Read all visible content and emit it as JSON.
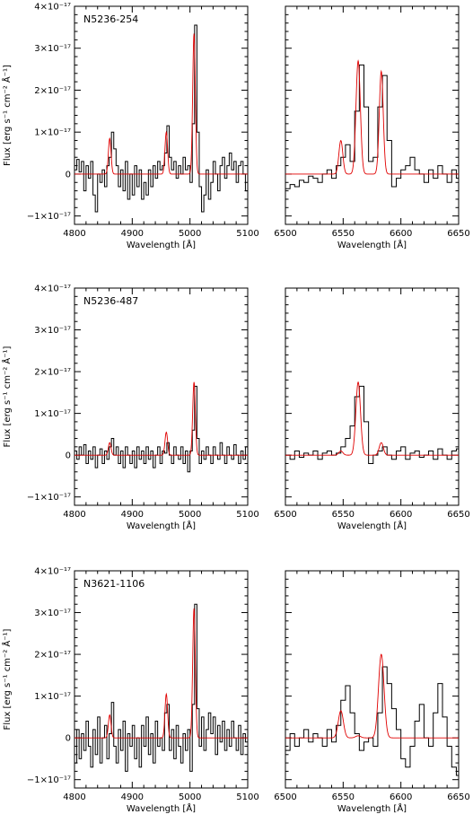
{
  "chart_data": [
    {
      "type": "line",
      "label": "N5236-254",
      "xlabel": "Wavelength [Å]",
      "ylabel": "Flux [erg s⁻¹ cm⁻² Å⁻¹]",
      "xlim": [
        4800,
        5100
      ],
      "ylim": [
        -1.2e-17,
        4e-17
      ],
      "xticks": [
        4800,
        4900,
        5000,
        5100
      ],
      "yticks": [
        {
          "v": -1e-17,
          "label": "−1×10⁻¹⁷"
        },
        {
          "v": 0,
          "label": "0"
        },
        {
          "v": 1e-17,
          "label": "1×10⁻¹⁷"
        },
        {
          "v": 2e-17,
          "label": "2×10⁻¹⁷"
        },
        {
          "v": 3e-17,
          "label": "3×10⁻¹⁷"
        },
        {
          "v": 4e-17,
          "label": "4×10⁻¹⁷"
        }
      ],
      "series": [
        {
          "role": "observed",
          "color": "#000000",
          "x": [
            4800,
            4804,
            4808,
            4812,
            4816,
            4820,
            4824,
            4828,
            4832,
            4836,
            4840,
            4844,
            4848,
            4852,
            4856,
            4860,
            4864,
            4868,
            4872,
            4876,
            4880,
            4884,
            4888,
            4892,
            4896,
            4900,
            4904,
            4908,
            4912,
            4916,
            4920,
            4924,
            4928,
            4932,
            4936,
            4940,
            4944,
            4948,
            4952,
            4956,
            4960,
            4964,
            4968,
            4972,
            4976,
            4980,
            4984,
            4988,
            4992,
            4996,
            5000,
            5004,
            5008,
            5012,
            5016,
            5020,
            5024,
            5028,
            5032,
            5036,
            5040,
            5044,
            5048,
            5052,
            5056,
            5060,
            5064,
            5068,
            5072,
            5076,
            5080,
            5084,
            5088,
            5092,
            5096,
            5100
          ],
          "y": [
            1e-18,
            3.5e-18,
            5e-19,
            3e-18,
            -4e-18,
            2e-18,
            -1e-18,
            3e-18,
            -5e-18,
            -9e-18,
            0.0,
            -2e-18,
            1e-18,
            -3e-18,
            2e-18,
            4e-18,
            1e-17,
            6e-18,
            2e-18,
            -3e-18,
            1e-18,
            -4e-18,
            3e-18,
            -6e-18,
            0.0,
            -5e-18,
            2e-18,
            -3e-18,
            1e-18,
            -6e-18,
            -2e-18,
            -5e-18,
            1e-18,
            -3e-18,
            2e-18,
            -1e-18,
            3e-18,
            1e-18,
            2e-18,
            5e-18,
            1.15e-17,
            4e-18,
            1e-18,
            3e-18,
            -1e-18,
            2e-18,
            0.0,
            4e-18,
            1e-18,
            2e-18,
            -2e-18,
            1.2e-17,
            3.55e-17,
            1e-17,
            -3e-18,
            -9e-18,
            -5e-18,
            1e-18,
            -6e-18,
            -2e-18,
            3e-18,
            0.0,
            -4e-18,
            2e-18,
            4e-18,
            -1e-18,
            2e-18,
            5e-18,
            1e-18,
            3e-18,
            -2e-18,
            2e-18,
            3e-18,
            0.0,
            -4e-18,
            1e-18
          ]
        },
        {
          "role": "model",
          "color": "#e00000",
          "lines": [
            {
              "center": 4861,
              "amp": 8.5e-18,
              "sigma": 2.3
            },
            {
              "center": 4959,
              "amp": 1e-17,
              "sigma": 2.3
            },
            {
              "center": 5007,
              "amp": 3.35e-17,
              "sigma": 2.3
            }
          ]
        }
      ]
    },
    {
      "type": "line",
      "xlabel": "Wavelength [Å]",
      "xlim": [
        6500,
        6650
      ],
      "ylim": [
        -1.2e-17,
        4e-17
      ],
      "xticks": [
        6500,
        6550,
        6600,
        6650
      ],
      "series": [
        {
          "role": "observed",
          "color": "#000000",
          "x": [
            6500,
            6504,
            6508,
            6512,
            6516,
            6520,
            6524,
            6528,
            6532,
            6536,
            6540,
            6544,
            6548,
            6552,
            6556,
            6560,
            6564,
            6568,
            6572,
            6576,
            6580,
            6584,
            6588,
            6592,
            6596,
            6600,
            6604,
            6608,
            6612,
            6616,
            6620,
            6624,
            6628,
            6632,
            6636,
            6640,
            6644,
            6648,
            6650
          ],
          "y": [
            -3.5e-18,
            -2.5e-18,
            -3e-18,
            -1.5e-18,
            -2e-18,
            -5e-19,
            -1e-18,
            -2e-18,
            0.0,
            1e-18,
            -1e-18,
            2e-18,
            4e-18,
            7e-18,
            3e-18,
            1.5e-17,
            2.6e-17,
            1.6e-17,
            3e-18,
            4e-18,
            1.6e-17,
            2.35e-17,
            8e-18,
            -3e-18,
            -1e-18,
            1e-18,
            2e-18,
            4e-18,
            1e-18,
            0.0,
            -2e-18,
            1e-18,
            -1e-18,
            2e-18,
            0.0,
            -2e-18,
            1e-18,
            -1e-18,
            0.0
          ]
        },
        {
          "role": "model",
          "color": "#e00000",
          "lines": [
            {
              "center": 6548,
              "amp": 8e-18,
              "sigma": 1.7
            },
            {
              "center": 6563,
              "amp": 2.7e-17,
              "sigma": 1.9
            },
            {
              "center": 6583,
              "amp": 2.45e-17,
              "sigma": 1.7
            }
          ]
        }
      ]
    },
    {
      "type": "line",
      "label": "N5236-487",
      "xlabel": "Wavelength [Å]",
      "ylabel": "Flux [erg s⁻¹ cm⁻² Å⁻¹]",
      "xlim": [
        4800,
        5100
      ],
      "ylim": [
        -1.2e-17,
        4e-17
      ],
      "xticks": [
        4800,
        4900,
        5000,
        5100
      ],
      "yticks": [
        {
          "v": -1e-17,
          "label": "−1×10⁻¹⁷"
        },
        {
          "v": 0,
          "label": "0"
        },
        {
          "v": 1e-17,
          "label": "1×10⁻¹⁷"
        },
        {
          "v": 2e-17,
          "label": "2×10⁻¹⁷"
        },
        {
          "v": 3e-17,
          "label": "3×10⁻¹⁷"
        },
        {
          "v": 4e-17,
          "label": "4×10⁻¹⁷"
        }
      ],
      "series": [
        {
          "role": "observed",
          "color": "#000000",
          "x": [
            4800,
            4804,
            4808,
            4812,
            4816,
            4820,
            4824,
            4828,
            4832,
            4836,
            4840,
            4844,
            4848,
            4852,
            4856,
            4860,
            4864,
            4868,
            4872,
            4876,
            4880,
            4884,
            4888,
            4892,
            4896,
            4900,
            4904,
            4908,
            4912,
            4916,
            4920,
            4924,
            4928,
            4932,
            4936,
            4940,
            4944,
            4948,
            4952,
            4956,
            4960,
            4964,
            4968,
            4972,
            4976,
            4980,
            4984,
            4988,
            4992,
            4996,
            5000,
            5004,
            5008,
            5012,
            5016,
            5020,
            5024,
            5028,
            5032,
            5036,
            5040,
            5044,
            5048,
            5052,
            5056,
            5060,
            5064,
            5068,
            5072,
            5076,
            5080,
            5084,
            5088,
            5092,
            5096,
            5100
          ],
          "y": [
            1e-18,
            -1e-18,
            2e-18,
            0.0,
            2.5e-18,
            -2e-18,
            1e-18,
            -1e-18,
            2e-18,
            -3e-18,
            0.0,
            1.5e-18,
            -2e-18,
            1e-18,
            -1e-18,
            2e-18,
            4e-18,
            0.0,
            2e-18,
            -2e-18,
            1e-18,
            -3e-18,
            2e-18,
            0.0,
            -2e-18,
            1e-18,
            -3e-18,
            2e-18,
            -1e-18,
            1e-18,
            -2e-18,
            2e-18,
            -1e-18,
            1e-18,
            -3e-18,
            0.0,
            2e-18,
            -2e-18,
            1e-18,
            5e-19,
            3e-18,
            0.0,
            -2e-18,
            2e-18,
            0.0,
            -1e-18,
            2e-18,
            -2e-18,
            1e-18,
            -4e-18,
            1e-18,
            6e-18,
            1.65e-17,
            4e-18,
            -2e-18,
            1e-18,
            -1e-18,
            2e-18,
            0.0,
            -2e-18,
            2e-18,
            0.0,
            -1e-18,
            3e-18,
            0.0,
            -2e-18,
            2e-18,
            0.0,
            -1e-18,
            2.5e-18,
            0.0,
            -2e-18,
            1e-18,
            -1e-18,
            2e-18,
            0.0
          ]
        },
        {
          "role": "model",
          "color": "#e00000",
          "lines": [
            {
              "center": 4861,
              "amp": 3e-18,
              "sigma": 2.3
            },
            {
              "center": 4959,
              "amp": 5.5e-18,
              "sigma": 2.3
            },
            {
              "center": 5007,
              "amp": 1.75e-17,
              "sigma": 2.3
            }
          ]
        }
      ]
    },
    {
      "type": "line",
      "xlabel": "Wavelength [Å]",
      "xlim": [
        6500,
        6650
      ],
      "ylim": [
        -1.2e-17,
        4e-17
      ],
      "xticks": [
        6500,
        6550,
        6600,
        6650
      ],
      "series": [
        {
          "role": "observed",
          "color": "#000000",
          "x": [
            6500,
            6504,
            6508,
            6512,
            6516,
            6520,
            6524,
            6528,
            6532,
            6536,
            6540,
            6544,
            6548,
            6552,
            6556,
            6560,
            6564,
            6568,
            6572,
            6576,
            6580,
            6584,
            6588,
            6592,
            6596,
            6600,
            6604,
            6608,
            6612,
            6616,
            6620,
            6624,
            6628,
            6632,
            6636,
            6640,
            6644,
            6648,
            6650
          ],
          "y": [
            0.0,
            -1e-18,
            1e-18,
            -5e-19,
            5e-19,
            0.0,
            1e-18,
            -1e-18,
            5e-19,
            1e-18,
            0.0,
            5e-19,
            2e-18,
            4e-18,
            7e-18,
            1.4e-17,
            1.65e-17,
            8e-18,
            -2e-18,
            0.0,
            1e-18,
            2e-18,
            0.0,
            -1e-18,
            1e-18,
            2e-18,
            -1e-18,
            5e-19,
            1e-18,
            -5e-19,
            0.0,
            1e-18,
            -1e-18,
            1.5e-18,
            0.0,
            -1e-18,
            1e-18,
            1.5e-18,
            0.0
          ]
        },
        {
          "role": "model",
          "color": "#e00000",
          "lines": [
            {
              "center": 6548,
              "amp": 1e-18,
              "sigma": 1.8
            },
            {
              "center": 6563,
              "amp": 1.75e-17,
              "sigma": 2.0
            },
            {
              "center": 6583,
              "amp": 3e-18,
              "sigma": 1.8
            }
          ]
        }
      ]
    },
    {
      "type": "line",
      "label": "N3621-1106",
      "xlabel": "Wavelength [Å]",
      "ylabel": "Flux [erg s⁻¹ cm⁻² Å⁻¹]",
      "xlim": [
        4800,
        5100
      ],
      "ylim": [
        -1.2e-17,
        4e-17
      ],
      "xticks": [
        4800,
        4900,
        5000,
        5100
      ],
      "yticks": [
        {
          "v": -1e-17,
          "label": "−1×10⁻¹⁷"
        },
        {
          "v": 0,
          "label": "0"
        },
        {
          "v": 1e-17,
          "label": "1×10⁻¹⁷"
        },
        {
          "v": 2e-17,
          "label": "2×10⁻¹⁷"
        },
        {
          "v": 3e-17,
          "label": "3×10⁻¹⁷"
        },
        {
          "v": 4e-17,
          "label": "4×10⁻¹⁷"
        }
      ],
      "series": [
        {
          "role": "observed",
          "color": "#000000",
          "x": [
            4800,
            4804,
            4808,
            4812,
            4816,
            4820,
            4824,
            4828,
            4832,
            4836,
            4840,
            4844,
            4848,
            4852,
            4856,
            4860,
            4864,
            4868,
            4872,
            4876,
            4880,
            4884,
            4888,
            4892,
            4896,
            4900,
            4904,
            4908,
            4912,
            4916,
            4920,
            4924,
            4928,
            4932,
            4936,
            4940,
            4944,
            4948,
            4952,
            4956,
            4960,
            4964,
            4968,
            4972,
            4976,
            4980,
            4984,
            4988,
            4992,
            4996,
            5000,
            5004,
            5008,
            5012,
            5016,
            5020,
            5024,
            5028,
            5032,
            5036,
            5040,
            5044,
            5048,
            5052,
            5056,
            5060,
            5064,
            5068,
            5072,
            5076,
            5080,
            5084,
            5088,
            5092,
            5096,
            5100
          ],
          "y": [
            -6e-18,
            2e-18,
            -5e-18,
            1e-18,
            -3e-18,
            4e-18,
            -2e-18,
            -7e-18,
            2e-18,
            -4e-18,
            5e-18,
            -6e-18,
            0.0,
            3e-18,
            -5e-18,
            1e-18,
            8.5e-18,
            -2e-18,
            -6e-18,
            2e-18,
            -3e-18,
            4e-18,
            -8e-18,
            1e-18,
            -2e-18,
            3e-18,
            -5e-18,
            0.0,
            -7e-18,
            3e-18,
            -2e-18,
            5e-18,
            -4e-18,
            1e-18,
            -6e-18,
            4e-18,
            -2e-18,
            0.0,
            -3e-18,
            6e-18,
            8e-18,
            -3e-18,
            2e-18,
            -5e-18,
            3e-18,
            -2e-18,
            -6e-18,
            1e-18,
            -3e-18,
            2e-18,
            -8e-18,
            8e-18,
            3.2e-17,
            7e-18,
            -2e-18,
            5e-18,
            -3e-18,
            2e-18,
            6e-18,
            1e-18,
            5e-18,
            -4e-18,
            3e-18,
            -1e-18,
            4e-18,
            -3e-18,
            2e-18,
            -2e-18,
            4e-18,
            0.0,
            -3e-18,
            3e-18,
            -4e-18,
            1e-18,
            -1e-18,
            2e-18
          ]
        },
        {
          "role": "model",
          "color": "#e00000",
          "lines": [
            {
              "center": 4861,
              "amp": 5.5e-18,
              "sigma": 2.3
            },
            {
              "center": 4959,
              "amp": 1.05e-17,
              "sigma": 2.3
            },
            {
              "center": 5007,
              "amp": 3.1e-17,
              "sigma": 2.3
            }
          ]
        }
      ]
    },
    {
      "type": "line",
      "xlabel": "Wavelength [Å]",
      "xlim": [
        6500,
        6650
      ],
      "ylim": [
        -1.2e-17,
        4e-17
      ],
      "xticks": [
        6500,
        6550,
        6600,
        6650
      ],
      "series": [
        {
          "role": "observed",
          "color": "#000000",
          "x": [
            6500,
            6504,
            6508,
            6512,
            6516,
            6520,
            6524,
            6528,
            6532,
            6536,
            6540,
            6544,
            6548,
            6552,
            6556,
            6560,
            6564,
            6568,
            6572,
            6576,
            6580,
            6584,
            6588,
            6592,
            6596,
            6600,
            6604,
            6608,
            6612,
            6616,
            6620,
            6624,
            6628,
            6632,
            6636,
            6640,
            6644,
            6648,
            6650
          ],
          "y": [
            -3e-18,
            1e-18,
            -2e-18,
            0.0,
            2e-18,
            -1e-18,
            1e-18,
            0.0,
            -2e-18,
            2e-18,
            -1e-18,
            3e-18,
            9e-18,
            1.25e-17,
            6e-18,
            1e-18,
            -3e-18,
            -1e-18,
            0.0,
            -2e-18,
            6e-18,
            1.7e-17,
            1.3e-17,
            7e-18,
            2e-18,
            -5e-18,
            -7e-18,
            -2e-18,
            4e-18,
            8e-18,
            0.0,
            -2e-18,
            6e-18,
            1.3e-17,
            5e-18,
            -2e-18,
            -7e-18,
            -9e-18,
            -5e-18
          ]
        },
        {
          "role": "model",
          "color": "#e00000",
          "lines": [
            {
              "center": 6548,
              "amp": 6.5e-18,
              "sigma": 2.2
            },
            {
              "center": 6563,
              "amp": 5e-19,
              "sigma": 2.2
            },
            {
              "center": 6583,
              "amp": 2e-17,
              "sigma": 2.4
            }
          ]
        }
      ]
    }
  ]
}
